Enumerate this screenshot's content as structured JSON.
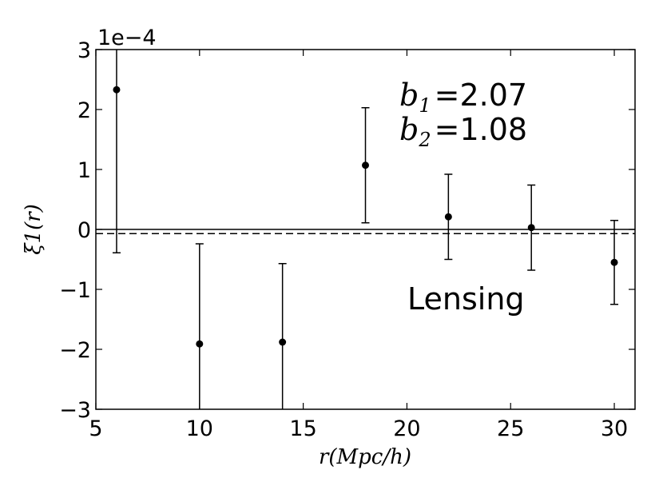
{
  "chart_data": {
    "type": "scatter",
    "title": "",
    "xlabel": "r(Mpc/h)",
    "ylabel": "ξ1(r)",
    "y_multiplier": "1e−4",
    "xlim": [
      5,
      31
    ],
    "ylim": [
      -3,
      3
    ],
    "x_ticks": [
      5,
      10,
      15,
      20,
      25,
      30
    ],
    "y_ticks": [
      -3,
      -2,
      -1,
      0,
      1,
      2,
      3
    ],
    "grid": false,
    "series": [
      {
        "marker": "circle",
        "color": "#000000",
        "x": [
          6,
          10,
          14,
          18,
          22,
          26,
          30
        ],
        "y": [
          2.33,
          -1.91,
          -1.88,
          1.07,
          0.21,
          0.03,
          -0.55
        ],
        "yerr": [
          2.72,
          1.67,
          1.31,
          0.96,
          0.71,
          0.71,
          0.7
        ]
      }
    ],
    "reference_lines": [
      {
        "style": "solid",
        "y": 0.0
      },
      {
        "style": "dashed",
        "y": -0.07
      }
    ],
    "annotations": {
      "b1_symbol": "b",
      "b1_sub": "1",
      "b1_value": "=2.07",
      "b2_symbol": "b",
      "b2_sub": "2",
      "b2_value": "=1.08",
      "label": "Lensing"
    }
  }
}
